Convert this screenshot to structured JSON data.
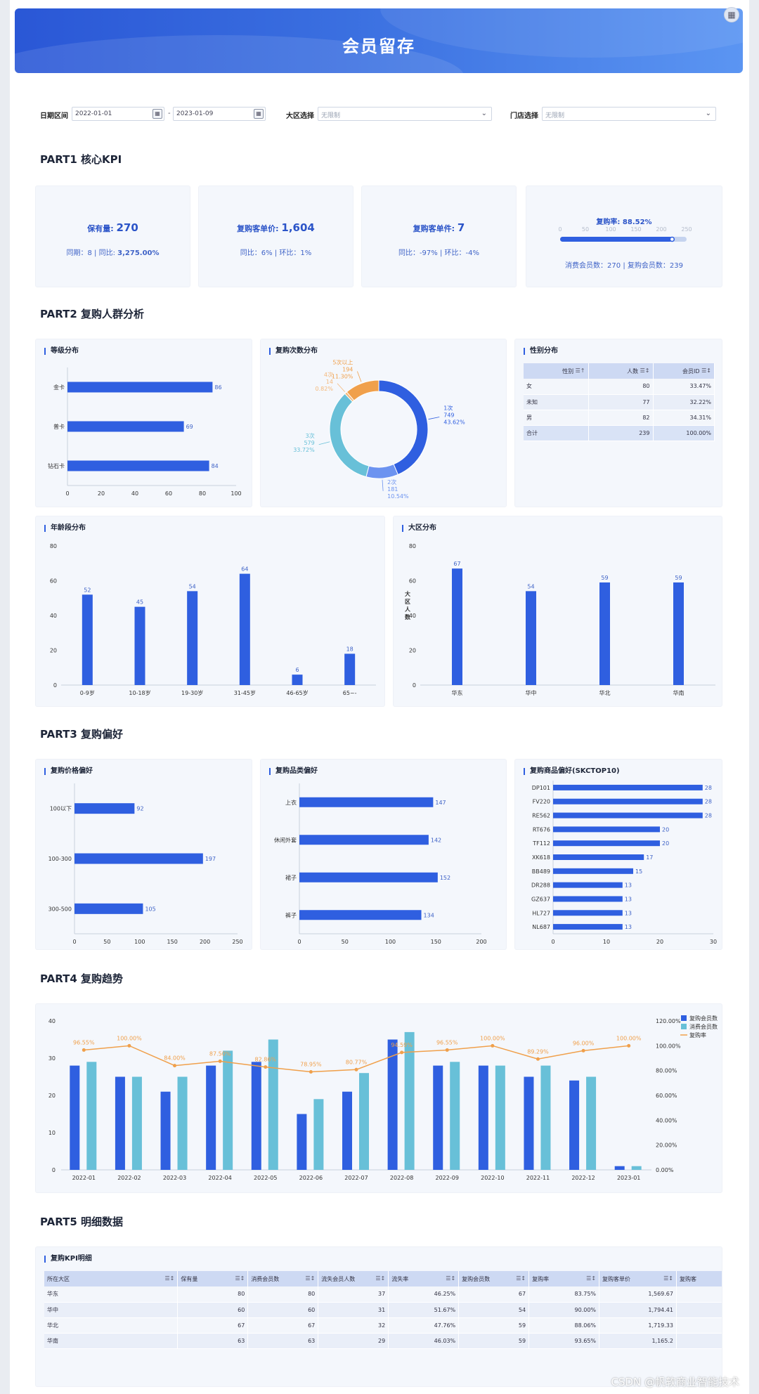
{
  "header": {
    "title": "会员留存"
  },
  "filters": {
    "date_label": "日期区间",
    "date_start": "2022-01-01",
    "date_sep": "-",
    "date_end": "2023-01-09",
    "region_label": "大区选择",
    "region_value": "无限制",
    "store_label": "门店选择",
    "store_value": "无限制"
  },
  "parts": {
    "p1": "PART1 核心KPI",
    "p2": "PART2  复购人群分析",
    "p3": "PART3  复购偏好",
    "p4": "PART4  复购趋势",
    "p5": "PART5  明细数据"
  },
  "kpi": {
    "retention": {
      "label": "保有量:",
      "value": "270",
      "yoy_sub": "同期：8",
      "sep": "|",
      "yoy_label": "同比:",
      "yoy_value": "3,275.00%"
    },
    "unit_price": {
      "label": "复购客单价:",
      "value": "1,604",
      "yoy": "同比：6%",
      "sep": "|",
      "mom": "环比：1%"
    },
    "unit_items": {
      "label": "复购客单件:",
      "value": "7",
      "yoy": "同比：-97%",
      "sep": "|",
      "mom": "环比：-4%"
    },
    "repurchase": {
      "label": "复购率:",
      "value": "88.52%",
      "ticks": [
        "0",
        "50",
        "100",
        "150",
        "200",
        "250"
      ],
      "fill": 0.8852,
      "consume_label": "消费会员数：270",
      "sep": "|",
      "repurchase_label": "复购会员数：239"
    }
  },
  "panels": {
    "level": "等级分布",
    "count": "复购次数分布",
    "gender": "性别分布",
    "age": "年龄段分布",
    "region": "大区分布",
    "price": "复购价格偏好",
    "category": "复购品类偏好",
    "sku": "复购商品偏好(SKCTOP10)",
    "detail": "复购KPI明细"
  },
  "gender_table": {
    "headers": [
      "性别",
      "人数",
      "会员ID"
    ],
    "rows": [
      [
        "女",
        "80",
        "33.47%"
      ],
      [
        "未知",
        "77",
        "32.22%"
      ],
      [
        "男",
        "82",
        "34.31%"
      ]
    ],
    "total": [
      "合计",
      "239",
      "100.00%"
    ]
  },
  "detail_table": {
    "headers": [
      "所在大区",
      "保有量",
      "消费会员数",
      "流失会员人数",
      "流失率",
      "复购会员数",
      "复购率",
      "复购客单价",
      "复购客"
    ],
    "rows": [
      [
        "华东",
        "80",
        "80",
        "37",
        "46.25%",
        "67",
        "83.75%",
        "1,569.67"
      ],
      [
        "华中",
        "60",
        "60",
        "31",
        "51.67%",
        "54",
        "90.00%",
        "1,794.41"
      ],
      [
        "华北",
        "67",
        "67",
        "32",
        "47.76%",
        "59",
        "88.06%",
        "1,719.33"
      ],
      [
        "华南",
        "63",
        "63",
        "29",
        "46.03%",
        "59",
        "93.65%",
        "1,165.2"
      ]
    ]
  },
  "watermark": "CSDN @帆软商业智能技术",
  "colors": {
    "primary": "#2f5fe0",
    "teal": "#68c0d8",
    "orange": "#f0a04b",
    "light_blue": "#6c93f0"
  },
  "chart_data": [
    {
      "id": "level",
      "type": "bar",
      "orientation": "horizontal",
      "categories": [
        "金卡",
        "普卡",
        "钻石卡"
      ],
      "values": [
        86,
        69,
        84
      ],
      "xlim": [
        0,
        100
      ],
      "xticks": [
        0,
        20,
        40,
        60,
        80,
        100
      ]
    },
    {
      "id": "count",
      "type": "pie",
      "donut": true,
      "slices": [
        {
          "label": "1次",
          "count": 749,
          "pct": "43.62%",
          "color": "#2f5fe0"
        },
        {
          "label": "2次",
          "count": 181,
          "pct": "10.54%",
          "color": "#6c93f0"
        },
        {
          "label": "3次",
          "count": 579,
          "pct": "33.72%",
          "color": "#68c0d8"
        },
        {
          "label": "4次",
          "count": 14,
          "pct": "0.82%",
          "color": "#f4b87a"
        },
        {
          "label": "5次以上",
          "count": 194,
          "pct": "11.30%",
          "color": "#f0a04b"
        }
      ]
    },
    {
      "id": "age",
      "type": "bar",
      "categories": [
        "0-9岁",
        "10-18岁",
        "19-30岁",
        "31-45岁",
        "46-65岁",
        "65~-"
      ],
      "values": [
        52,
        45,
        54,
        64,
        6,
        18
      ],
      "ylim": [
        0,
        80
      ],
      "yticks": [
        0,
        20,
        40,
        60,
        80
      ]
    },
    {
      "id": "region",
      "type": "bar",
      "categories": [
        "华东",
        "华中",
        "华北",
        "华南"
      ],
      "values": [
        67,
        54,
        59,
        59
      ],
      "ylabel": "大区人数",
      "ylim": [
        0,
        80
      ],
      "yticks": [
        0,
        20,
        40,
        60,
        80
      ]
    },
    {
      "id": "price",
      "type": "bar",
      "orientation": "horizontal",
      "categories": [
        "100以下",
        "100-300",
        "300-500"
      ],
      "values": [
        92,
        197,
        105
      ],
      "xlim": [
        0,
        250
      ],
      "xticks": [
        0,
        50,
        100,
        150,
        200,
        250
      ]
    },
    {
      "id": "category",
      "type": "bar",
      "orientation": "horizontal",
      "categories": [
        "上衣",
        "休闲外套",
        "裙子",
        "裤子"
      ],
      "values": [
        147,
        142,
        152,
        134
      ],
      "xlim": [
        0,
        200
      ],
      "xticks": [
        0,
        50,
        100,
        150,
        200
      ]
    },
    {
      "id": "sku",
      "type": "bar",
      "orientation": "horizontal",
      "categories": [
        "DP101",
        "FV220",
        "RE562",
        "RT676",
        "TF112",
        "XK618",
        "BB489",
        "DR288",
        "GZ637",
        "HL727",
        "NL687"
      ],
      "values": [
        28,
        28,
        28,
        20,
        20,
        17,
        15,
        13,
        13,
        13,
        13
      ],
      "xlim": [
        0,
        30
      ],
      "xticks": [
        0,
        10,
        20,
        30
      ]
    },
    {
      "id": "trend",
      "type": "bar",
      "categories": [
        "2022-01",
        "2022-02",
        "2022-03",
        "2022-04",
        "2022-05",
        "2022-06",
        "2022-07",
        "2022-08",
        "2022-09",
        "2022-10",
        "2022-11",
        "2022-12",
        "2023-01"
      ],
      "series": [
        {
          "name": "复购会员数",
          "type": "bar",
          "color": "#2f5fe0",
          "values": [
            28,
            25,
            21,
            28,
            29,
            15,
            21,
            35,
            28,
            28,
            25,
            24,
            1
          ]
        },
        {
          "name": "消费会员数",
          "type": "bar",
          "color": "#68c0d8",
          "values": [
            29,
            25,
            25,
            32,
            35,
            19,
            26,
            37,
            29,
            28,
            28,
            25,
            1
          ]
        },
        {
          "name": "复购率",
          "type": "line",
          "axis": "right",
          "color": "#f0a04b",
          "values": [
            96.55,
            100.0,
            84.0,
            87.5,
            82.86,
            78.95,
            80.77,
            94.59,
            96.55,
            100.0,
            89.29,
            96.0,
            100.0
          ],
          "labels": [
            "96.55%",
            "100.00%",
            "84.00%",
            "87.50%",
            "82.86%",
            "78.95%",
            "80.77%",
            "94.59%",
            "96.55%",
            "100.00%",
            "89.29%",
            "96.00%",
            "100.00%"
          ]
        }
      ],
      "ylim": [
        0,
        40
      ],
      "yticks": [
        0,
        10,
        20,
        30,
        40
      ],
      "y2lim": [
        0,
        120
      ],
      "y2ticks": [
        "0.00%",
        "20.00%",
        "40.00%",
        "60.00%",
        "80.00%",
        "100.00%",
        "120.00%"
      ],
      "legend": "top-right"
    }
  ]
}
